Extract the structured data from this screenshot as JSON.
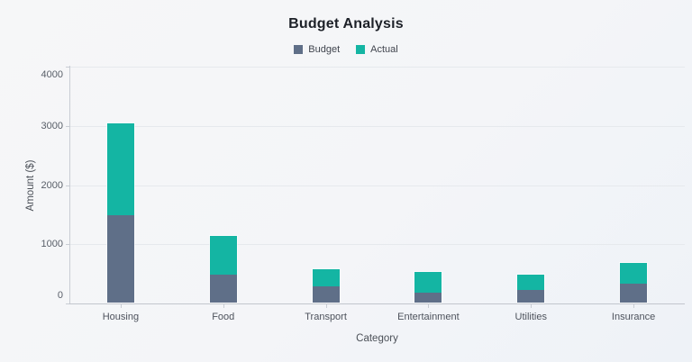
{
  "chart_data": {
    "type": "bar",
    "stacked": true,
    "title": "Budget Analysis",
    "categories": [
      "Housing",
      "Food",
      "Transport",
      "Entertainment",
      "Utilities",
      "Insurance"
    ],
    "series": [
      {
        "name": "Budget",
        "color": "#5f6f88",
        "values": [
          1500,
          500,
          300,
          200,
          250,
          350
        ]
      },
      {
        "name": "Actual",
        "color": "#14b5a3",
        "values": [
          1550,
          650,
          300,
          350,
          250,
          350
        ]
      }
    ],
    "xlabel": "Category",
    "ylabel": "Amount ($)",
    "ylim": [
      0,
      4000
    ],
    "yticks": [
      0,
      1000,
      2000,
      3000,
      4000
    ],
    "grid": true,
    "legend_position": "top"
  },
  "colors": {
    "background": "#f5f6f8",
    "gridline": "#e6e9ed",
    "axis": "#c9cdd4",
    "title_text": "#1d2128",
    "tick_text": "#585e68",
    "budget": "#5f6f88",
    "actual": "#14b5a3"
  }
}
